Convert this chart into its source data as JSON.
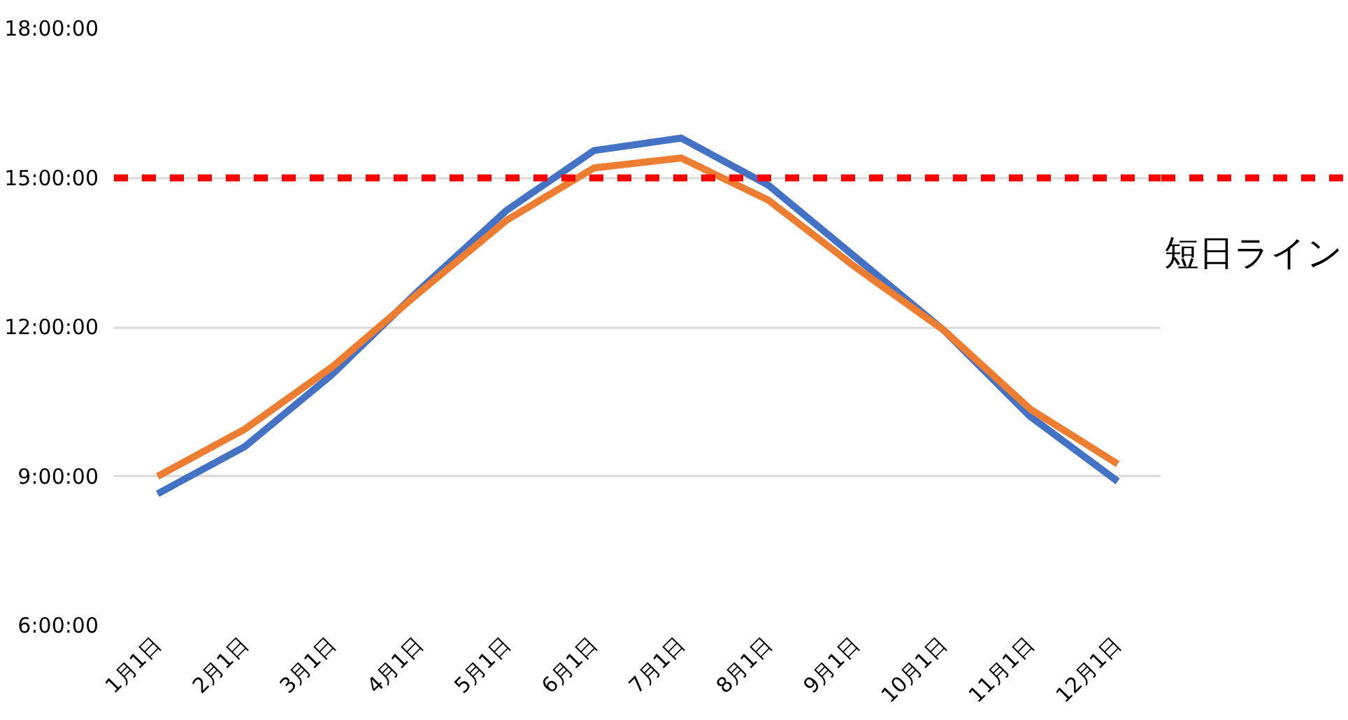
{
  "chart_data": {
    "type": "line",
    "categories": [
      "1月1日",
      "2月1日",
      "3月1日",
      "4月1日",
      "5月1日",
      "6月1日",
      "7月1日",
      "8月1日",
      "9月1日",
      "10月1日",
      "11月1日",
      "12月1日"
    ],
    "series": [
      {
        "color": "#4472c4",
        "values": [
          8.65,
          9.6,
          11.05,
          12.75,
          14.35,
          15.55,
          15.8,
          14.85,
          13.4,
          11.95,
          10.2,
          8.9
        ]
      },
      {
        "color": "#ed7d31",
        "values": [
          9.0,
          9.95,
          11.2,
          12.7,
          14.15,
          15.2,
          15.4,
          14.55,
          13.2,
          11.95,
          10.35,
          9.25
        ]
      }
    ],
    "ylim": [
      6,
      18
    ],
    "yticks": [
      {
        "value": 6,
        "label": "6:00:00"
      },
      {
        "value": 9,
        "label": "9:00:00"
      },
      {
        "value": 12,
        "label": "12:00:00"
      },
      {
        "value": 15,
        "label": "15:00:00"
      },
      {
        "value": 18,
        "label": "18:00:00"
      }
    ],
    "grid": "y",
    "marker": "none",
    "line_style": "solid",
    "ref_lines": [
      {
        "axis": "y",
        "value": 15,
        "label": "短日ライン",
        "color": "#ff0000",
        "line_style": "dashed"
      }
    ]
  }
}
